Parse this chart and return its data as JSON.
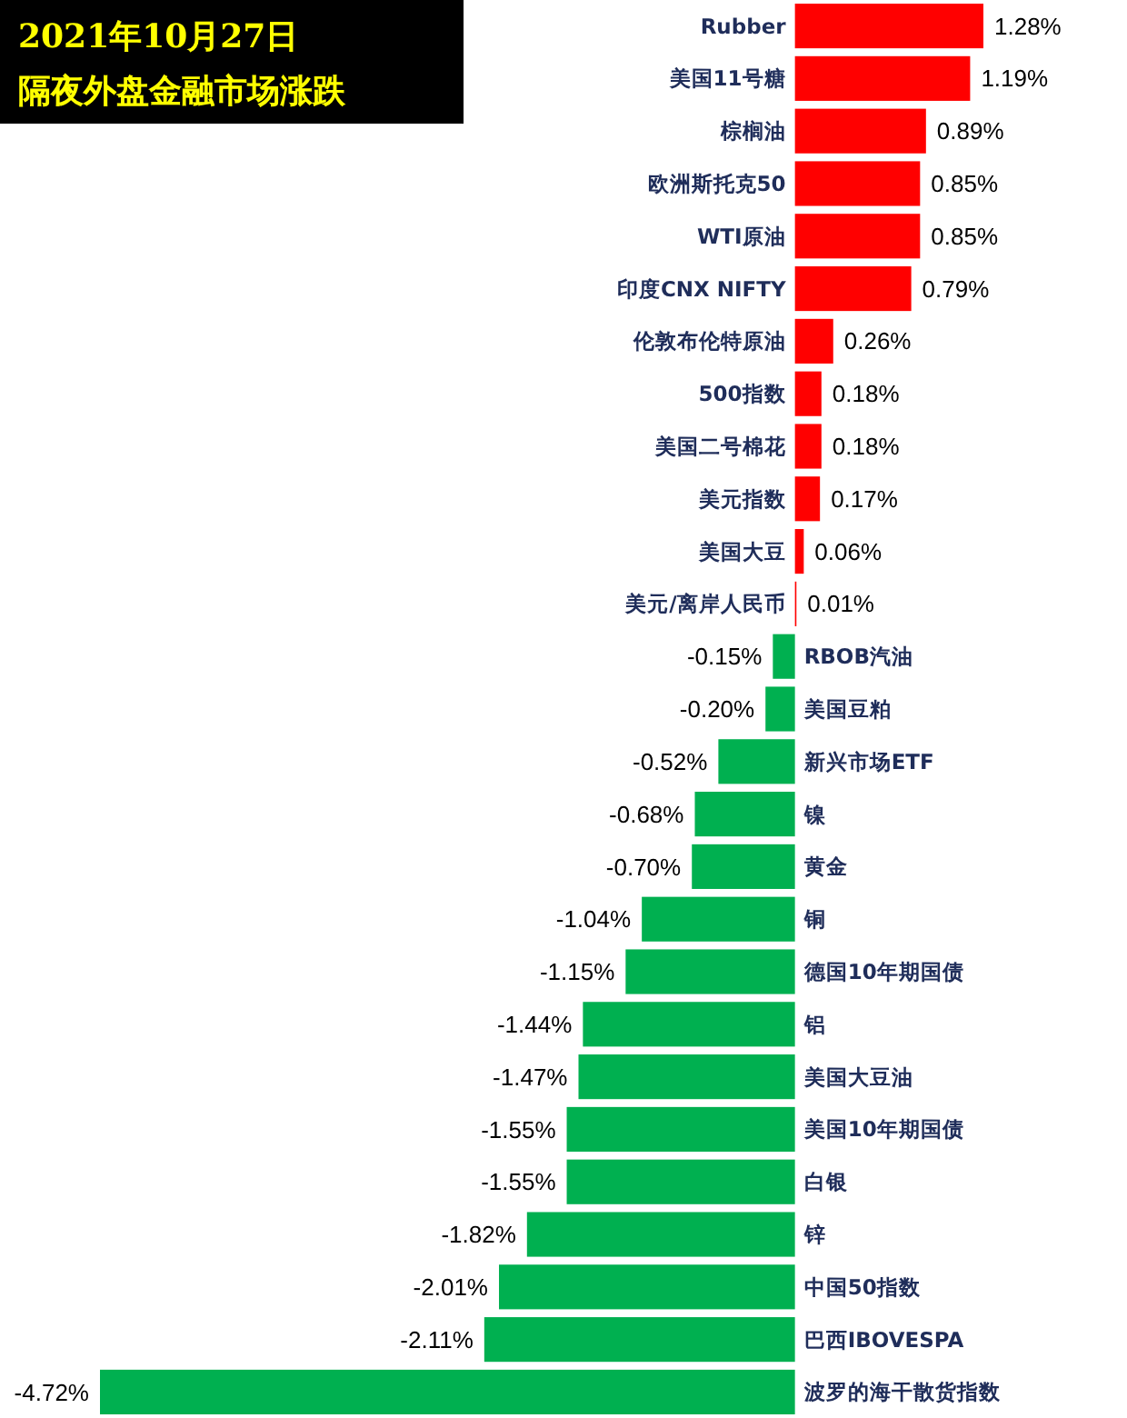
{
  "chart_data": {
    "type": "bar",
    "orientation": "horizontal",
    "title": "2021年10月27日",
    "subtitle": "隔夜外盘金融市场涨跌",
    "categories": [
      "Rubber",
      "美国11号糖",
      "棕榈油",
      "欧洲斯托克50",
      "WTI原油",
      "印度CNX NIFTY",
      "伦敦布伦特原油",
      "500指数",
      "美国二号棉花",
      "美元指数",
      "美国大豆",
      "美元/离岸人民币",
      "RBOB汽油",
      "美国豆粕",
      "新兴市场ETF",
      "镍",
      "黄金",
      "铜",
      "德国10年期国债",
      "铝",
      "美国大豆油",
      "美国10年期国债",
      "白银",
      "锌",
      "中国50指数",
      "巴西IBOVESPA",
      "波罗的海干散货指数"
    ],
    "values": [
      1.28,
      1.19,
      0.89,
      0.85,
      0.85,
      0.79,
      0.26,
      0.18,
      0.18,
      0.17,
      0.06,
      0.01,
      -0.15,
      -0.2,
      -0.52,
      -0.68,
      -0.7,
      -1.04,
      -1.15,
      -1.44,
      -1.47,
      -1.55,
      -1.55,
      -1.82,
      -2.01,
      -2.11,
      -4.72
    ],
    "value_labels": [
      "1.28%",
      "1.19%",
      "0.89%",
      "0.85%",
      "0.85%",
      "0.79%",
      "0.26%",
      "0.18%",
      "0.18%",
      "0.17%",
      "0.06%",
      "0.01%",
      "-0.15%",
      "-0.20%",
      "-0.52%",
      "-0.68%",
      "-0.70%",
      "-1.04%",
      "-1.15%",
      "-1.44%",
      "-1.47%",
      "-1.55%",
      "-1.55%",
      "-1.82%",
      "-2.01%",
      "-2.11%",
      "-4.72%"
    ],
    "colors": [
      "#ff0000",
      "#ff0000",
      "#ff0000",
      "#ff0000",
      "#ff0000",
      "#ff0000",
      "#ff0000",
      "#ff0000",
      "#ff0000",
      "#ff0000",
      "#ff0000",
      "#ff0000",
      "#00b050",
      "#00b050",
      "#00b050",
      "#00b050",
      "#00b050",
      "#00b050",
      "#00b050",
      "#00b050",
      "#00b050",
      "#00b050",
      "#00b050",
      "#00b050",
      "#00b050",
      "#00b050",
      "#00b050"
    ]
  }
}
